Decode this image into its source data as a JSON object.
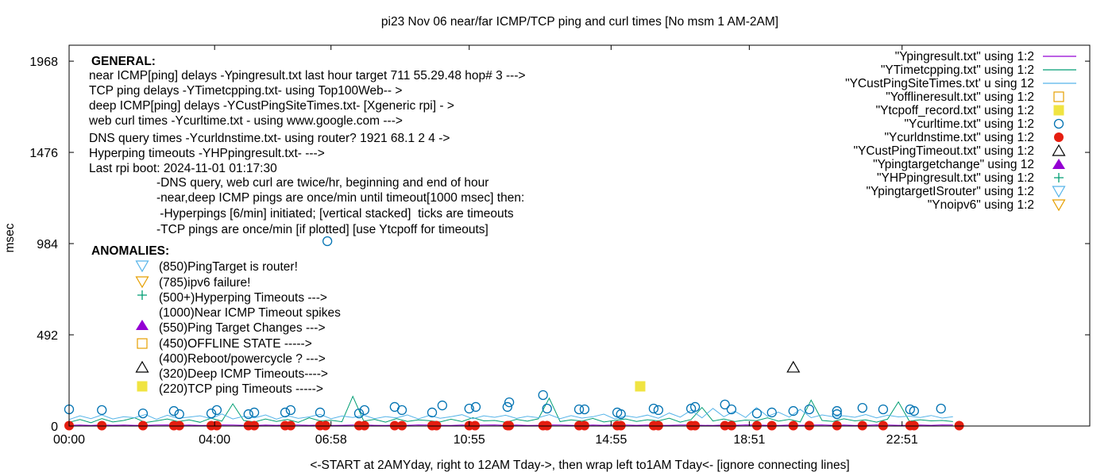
{
  "chart_data": {
    "type": "line",
    "title": "pi23 Nov 06  near/far ICMP/TCP ping and curl times [No msm 1 AM-2AM]",
    "xlabel": "<-START at 2AMYday, right to 12AM Tday->,  then wrap left to1AM Tday<- [ignore connecting lines]",
    "ylabel": "msec",
    "xlim": [
      0,
      28.06
    ],
    "ylim": [
      0,
      2054
    ],
    "grid": false,
    "legend_position": "top-right",
    "x_ticks": [
      {
        "value": 0,
        "label": "00:00"
      },
      {
        "value": 4.0,
        "label": "04:00"
      },
      {
        "value": 7.2,
        "label": "06:58"
      },
      {
        "value": 11.0,
        "label": "10:55"
      },
      {
        "value": 14.9,
        "label": "14:55"
      },
      {
        "value": 18.7,
        "label": "18:51"
      },
      {
        "value": 22.9,
        "label": "22:51"
      }
    ],
    "y_ticks": [
      {
        "value": 0,
        "label": "0"
      },
      {
        "value": 492,
        "label": "492"
      },
      {
        "value": 984,
        "label": "984"
      },
      {
        "value": 1476,
        "label": "1476"
      },
      {
        "value": 1968,
        "label": "1968"
      }
    ],
    "line_x_start": 0,
    "line_x_step": 0.3,
    "series": [
      {
        "name": "\"Ypingresult.txt\" using 1:2",
        "color": "#9400d3",
        "kind": "line",
        "values": [
          4,
          5,
          3,
          6,
          4,
          5,
          4,
          3,
          5,
          6,
          4,
          5,
          3,
          4,
          6,
          5,
          4,
          3,
          5,
          4,
          6,
          5,
          4,
          5,
          3,
          4,
          5,
          6,
          4,
          3,
          5,
          4,
          6,
          5,
          4,
          3,
          5,
          4,
          5,
          6,
          4,
          5,
          3,
          4,
          6,
          5,
          4,
          3,
          5,
          4,
          6,
          5,
          4,
          5,
          3,
          4,
          5,
          6,
          4,
          3,
          5,
          4,
          6,
          5,
          4,
          3,
          5,
          4,
          5,
          6,
          4,
          5,
          3,
          4,
          6,
          5,
          4,
          3,
          5,
          4,
          6,
          5
        ]
      },
      {
        "name": "\"YTimetcpping.txt\" using 1:2",
        "color": "#009e73",
        "kind": "line",
        "values": [
          20,
          35,
          18,
          40,
          22,
          30,
          45,
          19,
          28,
          38,
          24,
          33,
          20,
          42,
          26,
          120,
          30,
          22,
          38,
          25,
          35,
          20,
          44,
          28,
          31,
          23,
          160,
          27,
          36,
          21,
          40,
          25,
          33,
          29,
          22,
          37,
          24,
          45,
          28,
          30,
          20,
          36,
          26,
          39,
          150,
          24,
          33,
          27,
          41,
          22,
          30,
          38,
          25,
          34,
          28,
          42,
          21,
          35,
          100,
          27,
          38,
          24,
          32,
          29,
          44,
          26,
          36,
          22,
          140,
          30,
          25,
          39,
          28,
          33,
          21,
          37,
          130,
          26,
          34,
          28,
          30,
          24
        ]
      },
      {
        "name": "\"YCustPingSiteTimes.txt' u sing 12",
        "color": "#56b4e9",
        "kind": "line",
        "values": [
          35,
          55,
          40,
          60,
          38,
          50,
          45,
          62,
          36,
          58,
          42,
          48,
          55,
          40,
          65,
          38,
          52,
          44,
          60,
          37,
          56,
          41,
          49,
          63,
          39,
          54,
          46,
          58,
          40,
          51,
          44,
          60,
          38,
          57,
          42,
          50,
          61,
          39,
          55,
          47,
          58,
          41,
          52,
          45,
          62,
          40,
          56,
          43,
          50,
          64,
          38,
          55,
          46,
          59,
          42,
          70,
          48,
          85,
          44,
          95,
          50,
          80,
          46,
          100,
          52,
          75,
          48,
          90,
          45,
          60,
          50,
          55,
          47,
          62,
          44,
          58,
          49,
          53,
          46,
          57,
          43,
          50
        ]
      },
      {
        "name": "\"Yofflineresult.txt\" using 1:2",
        "color": "#e69f00",
        "kind": "open-square",
        "points": []
      },
      {
        "name": "\"Ytcpoff_record.txt\" using 1:2",
        "color": "#f0e442",
        "kind": "filled-square",
        "points": [
          [
            15.7,
            214
          ]
        ]
      },
      {
        "name": "\"Ycurltime.txt\" using 1:2",
        "color": "#0072b2",
        "kind": "open-circle",
        "points": [
          [
            0.0,
            90
          ],
          [
            0.9,
            86
          ],
          [
            2.03,
            68
          ],
          [
            2.88,
            81
          ],
          [
            3.03,
            64
          ],
          [
            3.91,
            68
          ],
          [
            4.06,
            86
          ],
          [
            4.93,
            64
          ],
          [
            5.09,
            73
          ],
          [
            5.94,
            73
          ],
          [
            6.09,
            86
          ],
          [
            6.9,
            73
          ],
          [
            7.1,
            997
          ],
          [
            7.97,
            68
          ],
          [
            8.12,
            86
          ],
          [
            8.95,
            103
          ],
          [
            9.15,
            86
          ],
          [
            9.98,
            73
          ],
          [
            10.26,
            111
          ],
          [
            11.0,
            94
          ],
          [
            11.18,
            103
          ],
          [
            12.05,
            103
          ],
          [
            12.1,
            128
          ],
          [
            13.03,
            167
          ],
          [
            13.14,
            94
          ],
          [
            14.02,
            90
          ],
          [
            14.17,
            90
          ],
          [
            15.07,
            73
          ],
          [
            15.17,
            64
          ],
          [
            16.07,
            94
          ],
          [
            16.2,
            86
          ],
          [
            17.1,
            94
          ],
          [
            17.21,
            103
          ],
          [
            18.03,
            116
          ],
          [
            18.21,
            90
          ],
          [
            18.91,
            68
          ],
          [
            19.32,
            73
          ],
          [
            19.91,
            81
          ],
          [
            20.35,
            90
          ],
          [
            21.11,
            81
          ],
          [
            21.11,
            64
          ],
          [
            21.81,
            98
          ],
          [
            22.38,
            90
          ],
          [
            23.12,
            90
          ],
          [
            23.23,
            81
          ],
          [
            23.97,
            94
          ]
        ]
      },
      {
        "name": "\"Ycurldnstime.txt\" using 1:2",
        "color": "#e51e10",
        "kind": "filled-circle",
        "points": [
          [
            0.0,
            2
          ],
          [
            0.9,
            2
          ],
          [
            2.03,
            2
          ],
          [
            2.88,
            2
          ],
          [
            3.03,
            2
          ],
          [
            3.91,
            2
          ],
          [
            4.06,
            2
          ],
          [
            4.93,
            2
          ],
          [
            5.09,
            2
          ],
          [
            5.94,
            2
          ],
          [
            6.09,
            2
          ],
          [
            6.9,
            2
          ],
          [
            7.05,
            2
          ],
          [
            7.97,
            2
          ],
          [
            8.12,
            2
          ],
          [
            8.95,
            2
          ],
          [
            9.15,
            2
          ],
          [
            9.98,
            2
          ],
          [
            10.1,
            2
          ],
          [
            11.0,
            2
          ],
          [
            11.16,
            2
          ],
          [
            12.05,
            2
          ],
          [
            12.1,
            2
          ],
          [
            13.03,
            2
          ],
          [
            13.14,
            2
          ],
          [
            14.02,
            2
          ],
          [
            14.17,
            2
          ],
          [
            15.07,
            2
          ],
          [
            15.17,
            2
          ],
          [
            16.07,
            2
          ],
          [
            16.2,
            2
          ],
          [
            17.1,
            2
          ],
          [
            17.21,
            2
          ],
          [
            18.03,
            2
          ],
          [
            18.21,
            2
          ],
          [
            18.91,
            2
          ],
          [
            19.32,
            2
          ],
          [
            19.91,
            2
          ],
          [
            20.35,
            2
          ],
          [
            21.11,
            2
          ],
          [
            21.81,
            2
          ],
          [
            22.38,
            2
          ],
          [
            23.12,
            2
          ],
          [
            23.23,
            2
          ],
          [
            24.47,
            2
          ]
        ]
      },
      {
        "name": "\"YCustPingTimeout.txt\" using  1:2",
        "color": "#000000",
        "kind": "open-triangle",
        "points": [
          [
            19.91,
            317
          ]
        ]
      },
      {
        "name": "\"Ypingtargetchange\" using 12",
        "color": "#9400d3",
        "kind": "filled-triangle",
        "points": []
      },
      {
        "name": "\"YHPpingresult.txt\" using 1:2",
        "color": "#009e73",
        "kind": "plus",
        "points": []
      },
      {
        "name": "\"YpingtargetISrouter\" using 1:2",
        "color": "#56b4e9",
        "kind": "open-down-triangle",
        "points": []
      },
      {
        "name": "\"Ynoipv6\" using 1:2",
        "color": "#e69f00",
        "kind": "open-down-triangle",
        "points": []
      }
    ],
    "annotations": {
      "general_heading": "GENERAL:",
      "general_lines": [
        "near ICMP[ping] delays  -Ypingresult.txt last hour target 711 55.29.48 hop# 3 --->",
        "TCP ping delays -YTimetcpping.txt- using Top100Web-- >",
        "deep ICMP[ping] delays -YCustPingSiteTimes.txt- [Xgeneric rpi] - >",
        "web curl times -Ycurltime.txt - using www.google.com  --->",
        "DNS query times -Ycurldnstime.txt- using router?  1921 68.1 2 4  ->",
        "Hyperping timeouts -YHPpingresult.txt- --->",
        "Last rpi boot: 2024-11-01 01:17:30"
      ],
      "notes": [
        "-DNS query, web curl are twice/hr, beginning and end of  hour",
        "-near,deep ICMP pings are once/min  until timeout[1000 msec]  then:",
        " -Hyperpings [6/min] initiated; [vertical stacked]  ticks are timeouts",
        "-TCP pings are once/min [if plotted] [use Ytcpoff for timeouts]"
      ],
      "anomalies_heading": "ANOMALIES:",
      "anomalies": [
        {
          "label": "(850)PingTarget is router!",
          "marker": "open-down-triangle",
          "color": "#56b4e9"
        },
        {
          "label": "(785)ipv6 failure!",
          "marker": "open-down-triangle",
          "color": "#e69f00"
        },
        {
          "label": "(500+)Hyperping Timeouts --->",
          "marker": "plus",
          "color": "#009e73"
        },
        {
          "label": "(1000)Near ICMP Timeout spikes",
          "marker": "none",
          "color": "#000000"
        },
        {
          "label": "(550)Ping Target Changes --->",
          "marker": "filled-triangle",
          "color": "#9400d3"
        },
        {
          "label": "(450)OFFLINE STATE ----->",
          "marker": "open-square",
          "color": "#e69f00"
        },
        {
          "label": "(400)Reboot/powercycle ? --->",
          "marker": "none",
          "color": "#000000"
        },
        {
          "label": "(320)Deep ICMP Timeouts---->",
          "marker": "open-triangle",
          "color": "#000000"
        },
        {
          "label": "(220)TCP ping Timeouts ----->",
          "marker": "filled-square",
          "color": "#f0e442"
        }
      ]
    }
  }
}
